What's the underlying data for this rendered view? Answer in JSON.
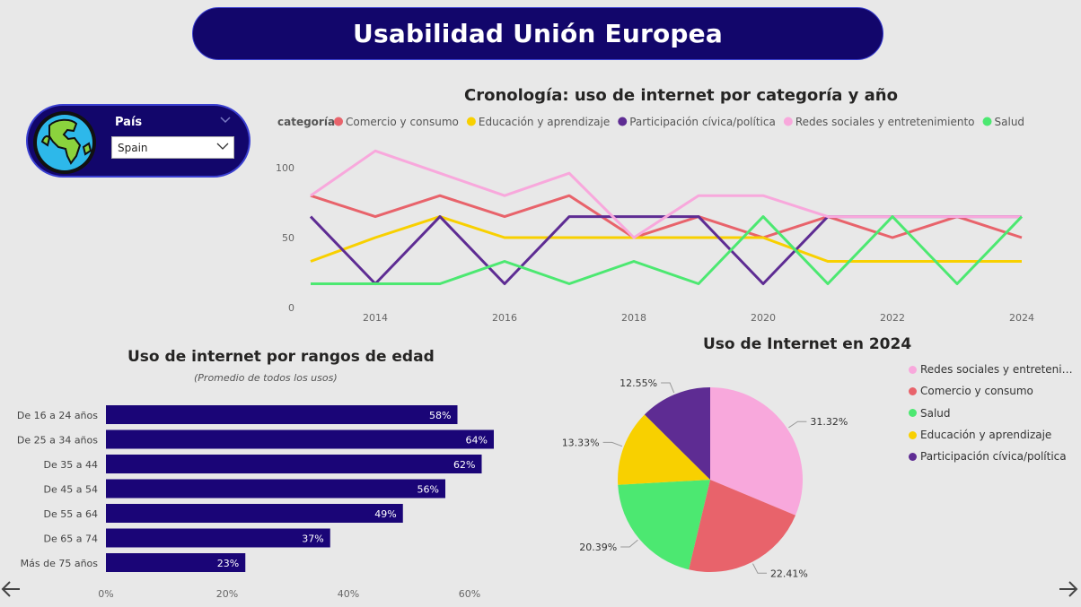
{
  "header": {
    "title": "Usabilidad Unión Europea"
  },
  "filter": {
    "label": "País",
    "value": "Spain",
    "icon": "globe-icon"
  },
  "line_chart": {
    "title": "Cronología: uso de internet por categoría y año",
    "legend_title": "categoría"
  },
  "bar_chart": {
    "title": "Uso de internet por rangos de edad",
    "subtitle": "(Promedio de todos los usos)"
  },
  "pie_chart": {
    "title": "Uso de Internet en 2024"
  },
  "colors": {
    "Comercio y consumo": "#e8636b",
    "Educación y aprendizaje": "#f8d000",
    "Participación cívica/política": "#5e2c93",
    "Redes sociales y entretenimiento": "#f8a8dc",
    "Salud": "#4ce871",
    "bar": "#1a0577",
    "banner": "#12066b"
  },
  "chart_data": [
    {
      "type": "line",
      "title": "Cronología: uso de internet por categoría y año",
      "legend_title": "categoría",
      "legend_position": "top",
      "x": [
        2013,
        2014,
        2015,
        2016,
        2017,
        2018,
        2019,
        2020,
        2021,
        2022,
        2023,
        2024
      ],
      "x_ticks": [
        "2014",
        "2016",
        "2018",
        "2020",
        "2022",
        "2024"
      ],
      "y_ticks": [
        "0",
        "50",
        "100"
      ],
      "ylim": [
        0,
        100
      ],
      "grid": false,
      "series": [
        {
          "name": "Comercio y consumo",
          "values": [
            80,
            65,
            80,
            65,
            80,
            50,
            65,
            50,
            65,
            50,
            65,
            50
          ]
        },
        {
          "name": "Educación y aprendizaje",
          "values": [
            33,
            50,
            65,
            50,
            50,
            50,
            50,
            50,
            33,
            33,
            33,
            33
          ]
        },
        {
          "name": "Participación cívica/política",
          "values": [
            65,
            17,
            65,
            17,
            65,
            65,
            65,
            17,
            65,
            65,
            65,
            65
          ]
        },
        {
          "name": "Redes sociales y entretenimiento",
          "values": [
            80,
            112,
            96,
            80,
            96,
            50,
            80,
            80,
            65,
            65,
            65,
            65
          ]
        },
        {
          "name": "Salud",
          "values": [
            17,
            17,
            17,
            33,
            17,
            33,
            17,
            65,
            17,
            65,
            17,
            65
          ]
        }
      ]
    },
    {
      "type": "bar",
      "orientation": "horizontal",
      "title": "Uso de internet por rangos de edad",
      "subtitle": "(Promedio de todos los usos)",
      "categories": [
        "De 16 a 24 años",
        "De 25 a 34 años",
        "De 35 a 44",
        "De 45 a 54",
        "De 55 a 64",
        "De 65 a 74",
        "Más de 75 años"
      ],
      "values": [
        58,
        64,
        62,
        56,
        49,
        37,
        23
      ],
      "value_labels": [
        "58%",
        "64%",
        "62%",
        "56%",
        "49%",
        "37%",
        "23%"
      ],
      "x_ticks": [
        "0%",
        "20%",
        "40%",
        "60%"
      ],
      "xlim": [
        0,
        64
      ]
    },
    {
      "type": "pie",
      "title": "Uso de Internet en 2024",
      "legend_position": "right",
      "slices": [
        {
          "label": "Redes sociales y entretenimiento",
          "legend_label": "Redes sociales y entretenimi...",
          "value": 31.32,
          "display": "31.32%"
        },
        {
          "label": "Comercio y consumo",
          "legend_label": "Comercio y consumo",
          "value": 22.41,
          "display": "22.41%"
        },
        {
          "label": "Salud",
          "legend_label": "Salud",
          "value": 20.39,
          "display": "20.39%"
        },
        {
          "label": "Educación y aprendizaje",
          "legend_label": "Educación y aprendizaje",
          "value": 13.33,
          "display": "13.33%"
        },
        {
          "label": "Participación cívica/política",
          "legend_label": "Participación cívica/política",
          "value": 12.55,
          "display": "12.55%"
        }
      ]
    }
  ],
  "navigation": {
    "prev_icon": "arrow-left-icon",
    "next_icon": "arrow-right-icon"
  }
}
